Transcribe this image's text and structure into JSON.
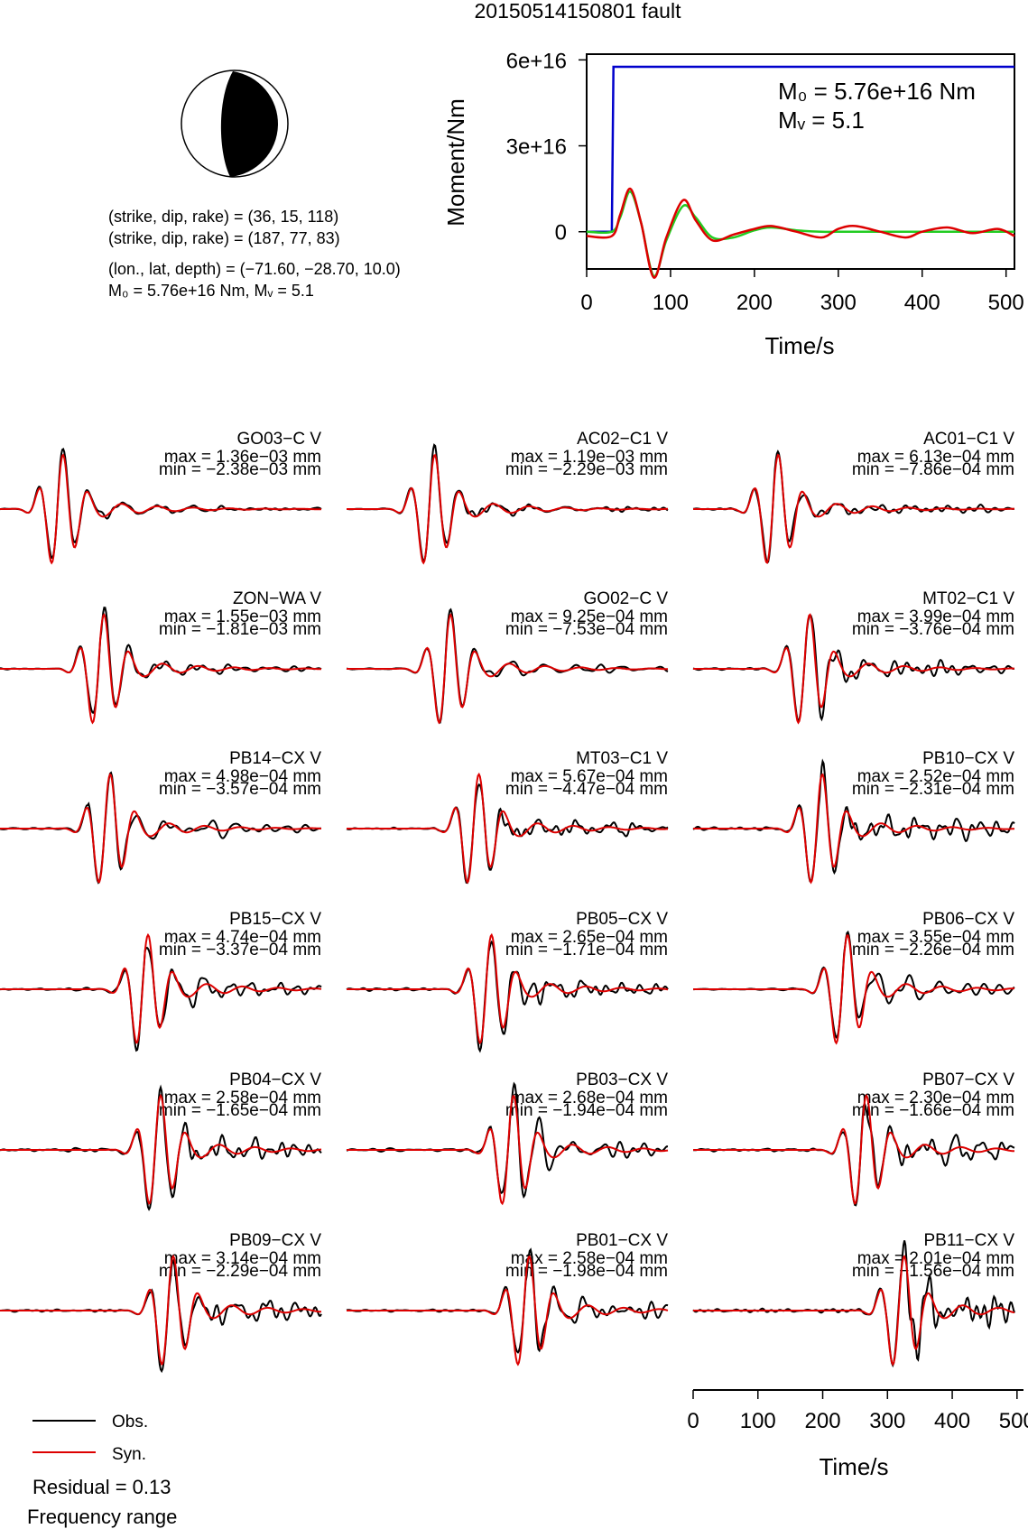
{
  "title": "20150514150801 fault",
  "focal": {
    "line1": "(strike, dip, rake) = (36, 15, 118)",
    "line2": "(strike, dip, rake) = (187, 77, 83)",
    "line3": "(lon., lat, depth) = (−71.60, −28.70, 10.0)",
    "line4": "M₀ = 5.76e+16 Nm, Mᵥ = 5.1",
    "colors": {
      "fill": "#000000",
      "background": "#ffffff"
    }
  },
  "moment_chart": {
    "ylabel": "Moment/Nm",
    "xlabel": "Time/s",
    "xticks": [
      "0",
      "100",
      "200",
      "300",
      "400",
      "500"
    ],
    "yticks": [
      "0",
      "3e+16",
      "6e+16"
    ],
    "m0_label": "M₀ = 5.76e+16 Nm",
    "mw_label": "Mᵥ = 5.1",
    "colors": {
      "cumulative": "#0000cc",
      "rate": "#dd0000",
      "rate_fit": "#22cc22"
    }
  },
  "bottom_axis": {
    "xlabel": "Time/s",
    "xticks": [
      "0",
      "100",
      "200",
      "300",
      "400",
      "500"
    ]
  },
  "legend": {
    "obs": "Obs.",
    "syn": "Syn.",
    "residual": "Residual = 0.13",
    "freq": "Frequency range",
    "colors": {
      "obs": "#000000",
      "syn": "#dd0000"
    }
  },
  "chart_data": [
    {
      "type": "line",
      "title": "",
      "xlabel": "Time/s",
      "ylabel": "Moment/Nm",
      "xlim": [
        0,
        510
      ],
      "ylim": [
        -1.3e+16,
        6.2e+16
      ],
      "series": [
        {
          "x": [
            0,
            30,
            32,
            510
          ],
          "y": [
            0,
            0,
            5.76e+16,
            5.76e+16
          ]
        },
        {
          "x": [
            0,
            30,
            40,
            52,
            65,
            80,
            95,
            115,
            130,
            150,
            175,
            200,
            220,
            250,
            280,
            300,
            320,
            350,
            380,
            400,
            430,
            460,
            490,
            510
          ],
          "y": [
            -1500000000000000.0,
            -1500000000000000.0,
            6000000000000000.0,
            1.5e+16,
            3000000000000000.0,
            -1.6e+16,
            -2000000000000000.0,
            1.1e+16,
            4000000000000000.0,
            -3000000000000000.0,
            -1000000000000000.0,
            1000000000000000.0,
            2000000000000000.0,
            0.0,
            -2000000000000000.0,
            1000000000000000.0,
            2000000000000000.0,
            0.0,
            -2000000000000000.0,
            0.0,
            1500000000000000.0,
            -500000000000000.0,
            1000000000000000.0,
            -1500000000000000.0
          ]
        },
        {
          "x": [
            0,
            30,
            40,
            52,
            65,
            80,
            95,
            115,
            130,
            150,
            175,
            200,
            220,
            250,
            280,
            310,
            350,
            400,
            450,
            510
          ],
          "y": [
            0,
            0,
            5000000000000000.0,
            1.4e+16,
            3000000000000000.0,
            -1.55e+16,
            -3000000000000000.0,
            9000000000000000.0,
            5000000000000000.0,
            -2000000000000000.0,
            -2000000000000000.0,
            500000000000000.0,
            1500000000000000.0,
            500000000000000.0,
            0.0,
            0.0,
            0.0,
            0.0,
            0.0,
            0.0
          ]
        }
      ]
    },
    {
      "type": "line",
      "xlabel": "Time/s",
      "xlim": [
        0,
        510
      ],
      "stations": [
        {
          "name": "GO03−C V",
          "max": "max = 1.36e−03 mm",
          "min": "min = −2.38e−03 mm",
          "arrival": 95,
          "noise": 0.1
        },
        {
          "name": "AC02−C1 V",
          "max": "max = 1.19e−03 mm",
          "min": "min = −2.29e−03 mm",
          "arrival": 135,
          "noise": 0.12
        },
        {
          "name": "AC01−C1 V",
          "max": "max = 6.13e−04 mm",
          "min": "min = −7.86e−04 mm",
          "arrival": 130,
          "noise": 0.18
        },
        {
          "name": "ZON−WA V",
          "max": "max = 1.55e−03 mm",
          "min": "min = −1.81e−03 mm",
          "arrival": 160,
          "noise": 0.18
        },
        {
          "name": "GO02−C V",
          "max": "max = 9.25e−04 mm",
          "min": "min = −7.53e−04 mm",
          "arrival": 160,
          "noise": 0.15
        },
        {
          "name": "MT02−C1 V",
          "max": "max = 3.99e−04 mm",
          "min": "min = −3.76e−04 mm",
          "arrival": 180,
          "noise": 0.3
        },
        {
          "name": "PB14−CX V",
          "max": "max = 4.98e−04 mm",
          "min": "min = −3.57e−04 mm",
          "arrival": 170,
          "noise": 0.25
        },
        {
          "name": "MT03−C1 V",
          "max": "max = 5.67e−04 mm",
          "min": "min = −4.47e−04 mm",
          "arrival": 205,
          "noise": 0.25
        },
        {
          "name": "PB10−CX V",
          "max": "max = 2.52e−04 mm",
          "min": "min = −2.31e−04 mm",
          "arrival": 200,
          "noise": 0.4
        },
        {
          "name": "PB15−CX V",
          "max": "max = 4.74e−04 mm",
          "min": "min = −3.37e−04 mm",
          "arrival": 230,
          "noise": 0.3
        },
        {
          "name": "PB05−CX V",
          "max": "max = 2.65e−04 mm",
          "min": "min = −1.71e−04 mm",
          "arrival": 225,
          "noise": 0.35
        },
        {
          "name": "PB06−CX V",
          "max": "max = 3.55e−04 mm",
          "min": "min = −2.26e−04 mm",
          "arrival": 240,
          "noise": 0.3
        },
        {
          "name": "PB04−CX V",
          "max": "max = 2.58e−04 mm",
          "min": "min = −1.65e−04 mm",
          "arrival": 250,
          "noise": 0.4
        },
        {
          "name": "PB03−CX V",
          "max": "max = 2.68e−04 mm",
          "min": "min = −1.94e−04 mm",
          "arrival": 260,
          "noise": 0.4
        },
        {
          "name": "PB07−CX V",
          "max": "max = 2.30e−04 mm",
          "min": "min = −1.66e−04 mm",
          "arrival": 270,
          "noise": 0.4
        },
        {
          "name": "PB09−CX V",
          "max": "max = 3.14e−04 mm",
          "min": "min = −2.29e−04 mm",
          "arrival": 270,
          "noise": 0.35
        },
        {
          "name": "PB01−CX V",
          "max": "max = 2.58e−04 mm",
          "min": "min = −1.98e−04 mm",
          "arrival": 285,
          "noise": 0.35
        },
        {
          "name": "PB11−CX V",
          "max": "max = 2.01e−04 mm",
          "min": "min = −1.56e−04 mm",
          "arrival": 330,
          "noise": 0.45
        }
      ]
    }
  ]
}
